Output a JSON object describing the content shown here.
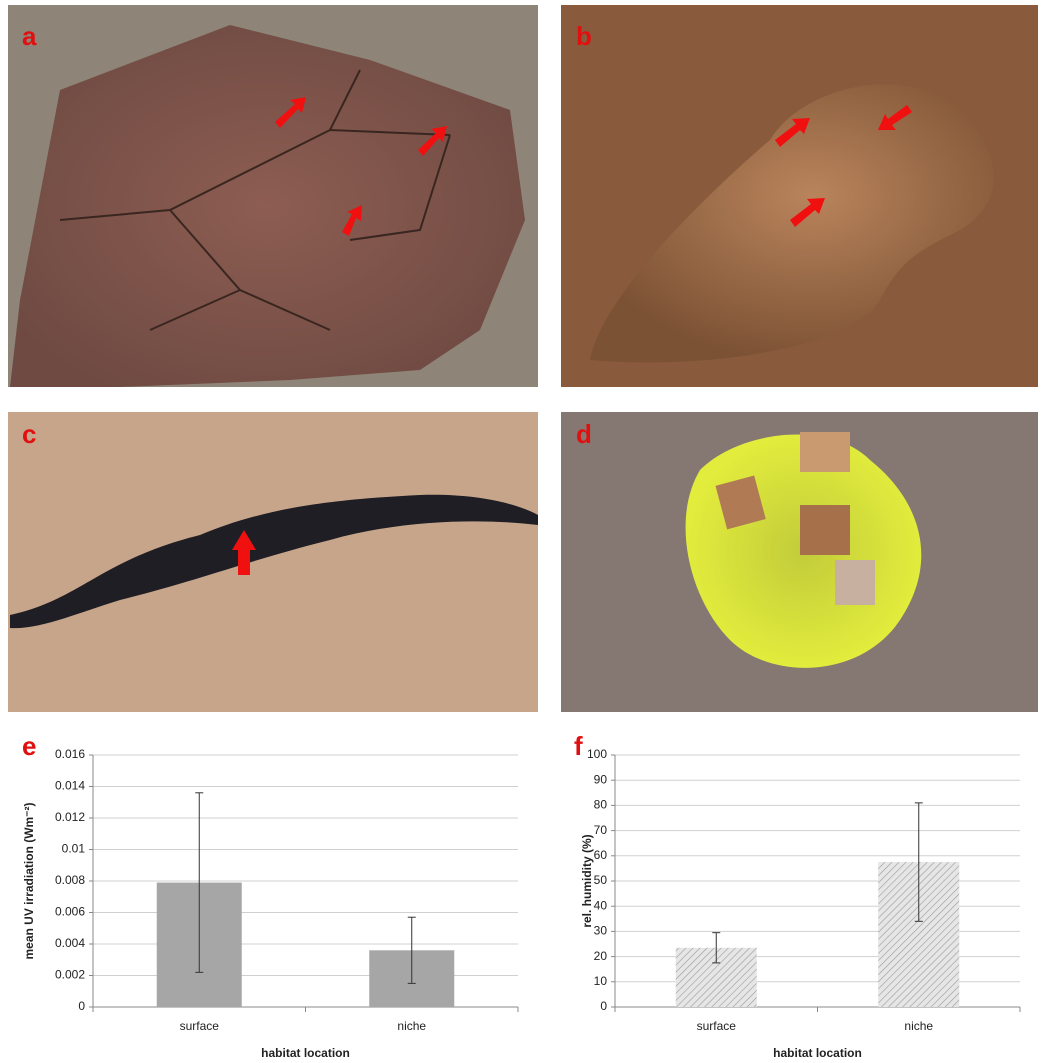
{
  "panel_labels": [
    "a",
    "b",
    "c",
    "d"
  ],
  "chart_data": [
    {
      "type": "bar",
      "label": "e",
      "ylabel": "mean UV irradiation (Wm⁻²)",
      "xlabel": "habitat location",
      "categories": [
        "surface",
        "niche"
      ],
      "values": [
        0.0079,
        0.0036
      ],
      "errors": [
        0.0057,
        0.0021
      ],
      "color": "#a6a6a6",
      "hatch": false,
      "ylim": [
        0,
        0.016
      ],
      "yticks": [
        0,
        0.002,
        0.004,
        0.006,
        0.008,
        0.01,
        0.012,
        0.014,
        0.016
      ],
      "grid": true
    },
    {
      "type": "bar",
      "label": "f",
      "ylabel": "rel. humidity (%)",
      "xlabel": "habitat location",
      "categories": [
        "surface",
        "niche"
      ],
      "values": [
        23.5,
        57.5
      ],
      "errors": [
        6,
        23.5
      ],
      "color": "#a6a6a6",
      "hatch": true,
      "ylim": [
        0,
        100
      ],
      "yticks": [
        0,
        10,
        20,
        30,
        40,
        50,
        60,
        70,
        80,
        90,
        100
      ],
      "grid": true
    }
  ]
}
